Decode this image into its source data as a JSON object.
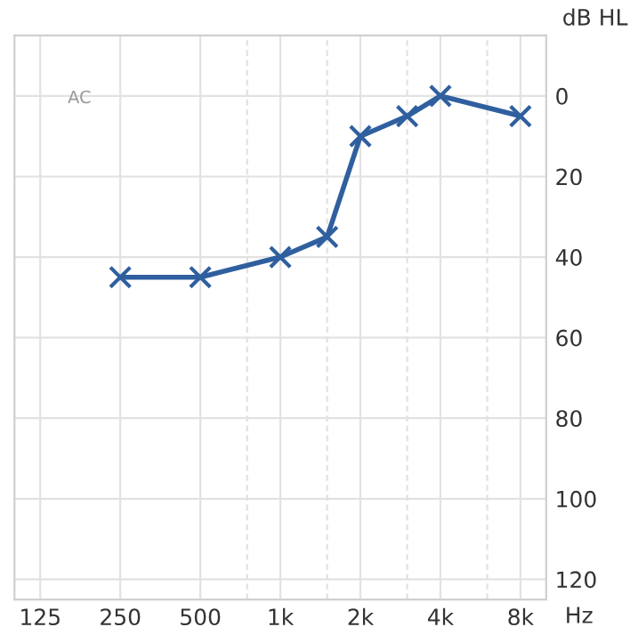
{
  "chart_data": {
    "type": "line",
    "xlabel": "Hz",
    "ylabel": "dB HL",
    "annotations": [
      "AC"
    ],
    "x": [
      250,
      500,
      1000,
      1500,
      2000,
      3000,
      4000,
      8000
    ],
    "series": [
      {
        "color": "#2f5f9e",
        "values": [
          45,
          45,
          40,
          35,
          10,
          5,
          0,
          5
        ]
      }
    ],
    "log": "x",
    "xlim": [
      100,
      10000
    ],
    "xticks": [
      125,
      250,
      500,
      {
        "value": 750,
        "label": null
      },
      {
        "value": 1000,
        "label": "1k"
      },
      {
        "value": 1500,
        "label": null
      },
      {
        "value": 2000,
        "label": "2k"
      },
      {
        "value": 3000,
        "label": null
      },
      {
        "value": 4000,
        "label": "4k"
      },
      {
        "value": 6000,
        "label": null
      },
      {
        "value": 8000,
        "label": "8k"
      }
    ],
    "ylim": [
      125,
      -15
    ],
    "yticks": [
      0,
      20,
      40,
      60,
      80,
      100,
      120
    ],
    "grid": true,
    "marker": "cross",
    "line_style": "solid"
  }
}
